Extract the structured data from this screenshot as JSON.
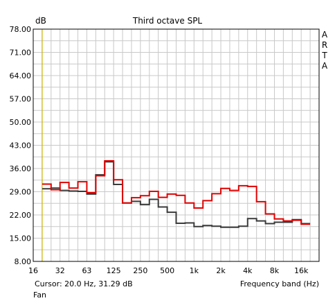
{
  "window": {
    "title": "Third octave SPL",
    "brand_letters": [
      "A",
      "R",
      "T",
      "A"
    ],
    "cursor_readout": "Cursor:    20.0 Hz, 31.29 dB",
    "preset_label": "Fan"
  },
  "colors": {
    "background": "#ffffff",
    "grid": "#c8c8c8",
    "axis": "#000000",
    "cursor_line": "#c8b400",
    "series_red": "#e00000",
    "series_dark": "#3a3a3a"
  },
  "chart_data": {
    "type": "line",
    "step": true,
    "title": "Third octave SPL",
    "ylabel": "dB",
    "xlabel": "Frequency band (Hz)",
    "ylim": [
      8,
      78
    ],
    "yticks": [
      "78.00",
      "71.00",
      "64.00",
      "57.00",
      "50.00",
      "43.00",
      "36.00",
      "29.00",
      "22.00",
      "15.00",
      "8.00"
    ],
    "xticks": [
      "16",
      "32",
      "63",
      "125",
      "250",
      "500",
      "1k",
      "2k",
      "4k",
      "8k",
      "16k"
    ],
    "grid": true,
    "bands": [
      "16",
      "20",
      "25",
      "31.5",
      "40",
      "50",
      "63",
      "80",
      "100",
      "125",
      "160",
      "200",
      "250",
      "315",
      "400",
      "500",
      "630",
      "800",
      "1k",
      "1.25k",
      "1.6k",
      "2k",
      "2.5k",
      "3.15k",
      "4k",
      "5k",
      "6.3k",
      "8k",
      "10k",
      "12.5k",
      "16k",
      "20k"
    ],
    "cursor_band": "20",
    "series": [
      {
        "color": "#e00000",
        "values": [
          null,
          31.3,
          29.6,
          31.8,
          30.1,
          32.0,
          28.7,
          33.8,
          38.3,
          32.6,
          25.6,
          27.2,
          27.8,
          29.1,
          27.3,
          28.3,
          27.9,
          25.6,
          24.1,
          26.3,
          28.4,
          30.0,
          29.4,
          30.8,
          30.6,
          26.0,
          22.3,
          20.8,
          20.2,
          20.4,
          19.2,
          null
        ]
      },
      {
        "color": "#3a3a3a",
        "values": [
          null,
          29.9,
          30.1,
          29.4,
          29.2,
          29.1,
          28.3,
          34.1,
          38.0,
          31.2,
          25.6,
          26.1,
          25.1,
          26.7,
          24.4,
          22.8,
          19.5,
          19.6,
          18.5,
          18.8,
          18.6,
          18.3,
          18.3,
          18.6,
          20.9,
          20.2,
          19.4,
          19.8,
          19.8,
          20.6,
          19.4,
          null
        ]
      }
    ]
  }
}
